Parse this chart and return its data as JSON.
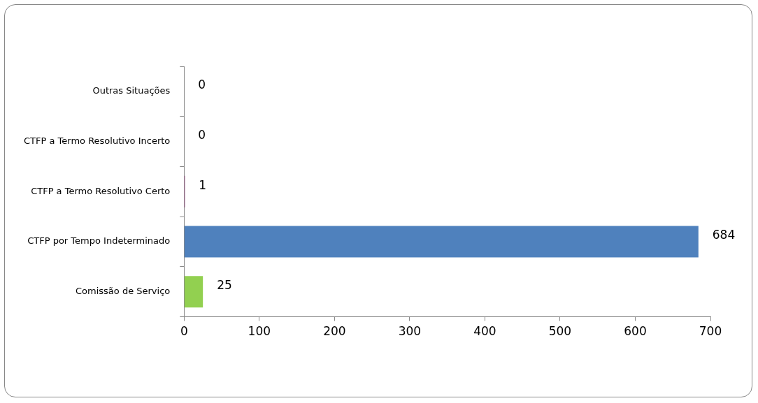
{
  "chart_data": {
    "type": "bar",
    "orientation": "horizontal",
    "categories": [
      "Outras Situações",
      "CTFP a Termo Resolutivo Incerto",
      "CTFP a Termo Resolutivo Certo",
      "CTFP por Tempo Indeterminado",
      "Comissão de Serviço"
    ],
    "values": [
      0,
      0,
      1,
      684,
      25
    ],
    "colors": [
      "#6f7f93",
      "#9c7a00",
      "#8b0d6a",
      "#4f81bd",
      "#92d050"
    ],
    "xlim": [
      0,
      700
    ],
    "xticks": [
      0,
      100,
      200,
      300,
      400,
      500,
      600,
      700
    ],
    "data_labels": true,
    "grid": false,
    "legend": false
  }
}
